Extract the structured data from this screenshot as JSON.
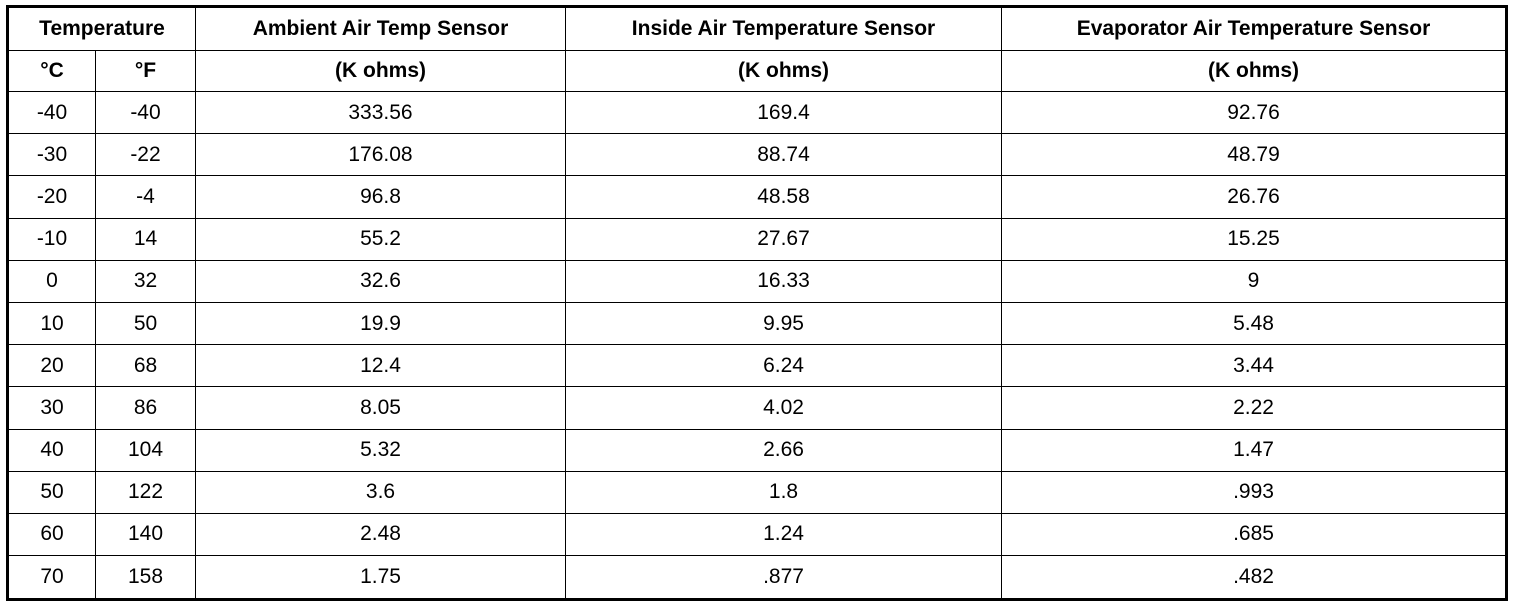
{
  "table": {
    "header": [
      [
        "Temperature",
        "Ambient Air Temp Sensor",
        "Inside Air Temperature Sensor",
        "Evaporator Air Temperature Sensor"
      ],
      [
        "°C",
        "°F",
        "(K ohms)",
        "(K ohms)",
        "(K ohms)"
      ]
    ],
    "rows": [
      [
        "-40",
        "-40",
        "333.56",
        "169.4",
        "92.76"
      ],
      [
        "-30",
        "-22",
        "176.08",
        "88.74",
        "48.79"
      ],
      [
        "-20",
        "-4",
        "96.8",
        "48.58",
        "26.76"
      ],
      [
        "-10",
        "14",
        "55.2",
        "27.67",
        "15.25"
      ],
      [
        "0",
        "32",
        "32.6",
        "16.33",
        "9"
      ],
      [
        "10",
        "50",
        "19.9",
        "9.95",
        "5.48"
      ],
      [
        "20",
        "68",
        "12.4",
        "6.24",
        "3.44"
      ],
      [
        "30",
        "86",
        "8.05",
        "4.02",
        "2.22"
      ],
      [
        "40",
        "104",
        "5.32",
        "2.66",
        "1.47"
      ],
      [
        "50",
        "122",
        "3.6",
        "1.8",
        ".993"
      ],
      [
        "60",
        "140",
        "2.48",
        "1.24",
        ".685"
      ],
      [
        "70",
        "158",
        "1.75",
        ".877",
        ".482"
      ]
    ]
  }
}
